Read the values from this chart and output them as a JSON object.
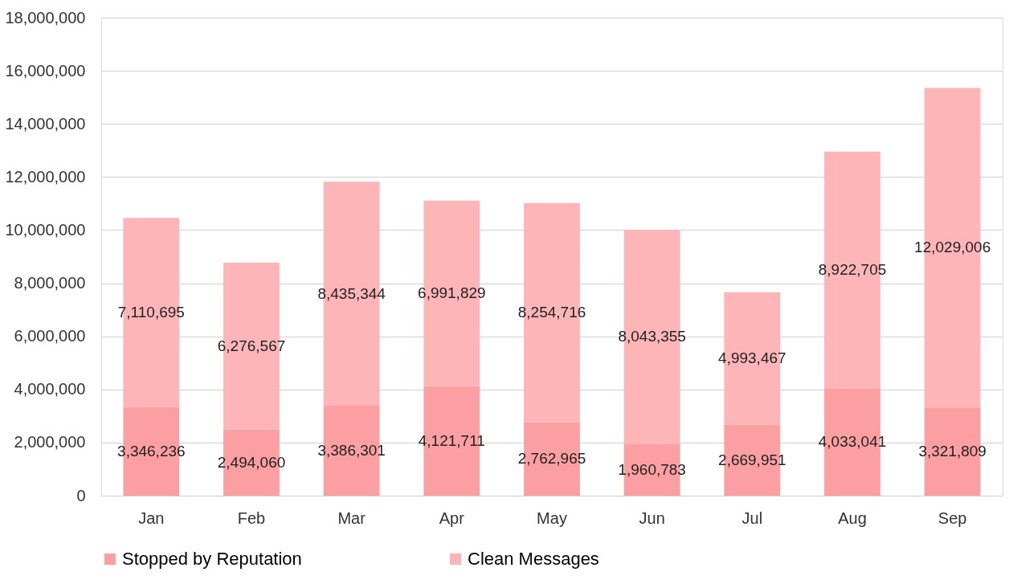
{
  "chart_data": {
    "type": "bar",
    "stacked": true,
    "categories": [
      "Jan",
      "Feb",
      "Mar",
      "Apr",
      "May",
      "Jun",
      "Jul",
      "Aug",
      "Sep"
    ],
    "series": [
      {
        "name": "Stopped by Reputation",
        "color": "#fb9fa3",
        "values": [
          3346236,
          2494060,
          3386301,
          4121711,
          2762965,
          1960783,
          2669951,
          4033041,
          3321809
        ],
        "value_labels": [
          "3,346,236",
          "2,494,060",
          "3,386,301",
          "4,121,711",
          "2,762,965",
          "1,960,783",
          "2,669,951",
          "4,033,041",
          "3,321,809"
        ]
      },
      {
        "name": "Clean Messages",
        "color": "#fdb5b8",
        "values": [
          7110695,
          6276567,
          8435344,
          6991829,
          8254716,
          8043355,
          4993467,
          8922705,
          12029006
        ],
        "value_labels": [
          "7,110,695",
          "6,276,567",
          "8,435,344",
          "6,991,829",
          "8,254,716",
          "8,043,355",
          "4,993,467",
          "8,922,705",
          "12,029,006"
        ]
      }
    ],
    "ylim": [
      0,
      18000000
    ],
    "yticks": [
      0,
      {
        "value": 2000000,
        "label": "2,000,000"
      },
      {
        "value": 4000000,
        "label": "4,000,000"
      },
      {
        "value": 6000000,
        "label": "6,000,000"
      },
      {
        "value": 8000000,
        "label": "8,000,000"
      },
      {
        "value": 10000000,
        "label": "10,000,000"
      },
      {
        "value": 12000000,
        "label": "12,000,000"
      },
      {
        "value": 14000000,
        "label": "14,000,000"
      },
      {
        "value": 16000000,
        "label": "16,000,000"
      },
      {
        "value": 18000000,
        "label": "18,000,000"
      }
    ],
    "grid": "y",
    "legend": "bottom"
  }
}
